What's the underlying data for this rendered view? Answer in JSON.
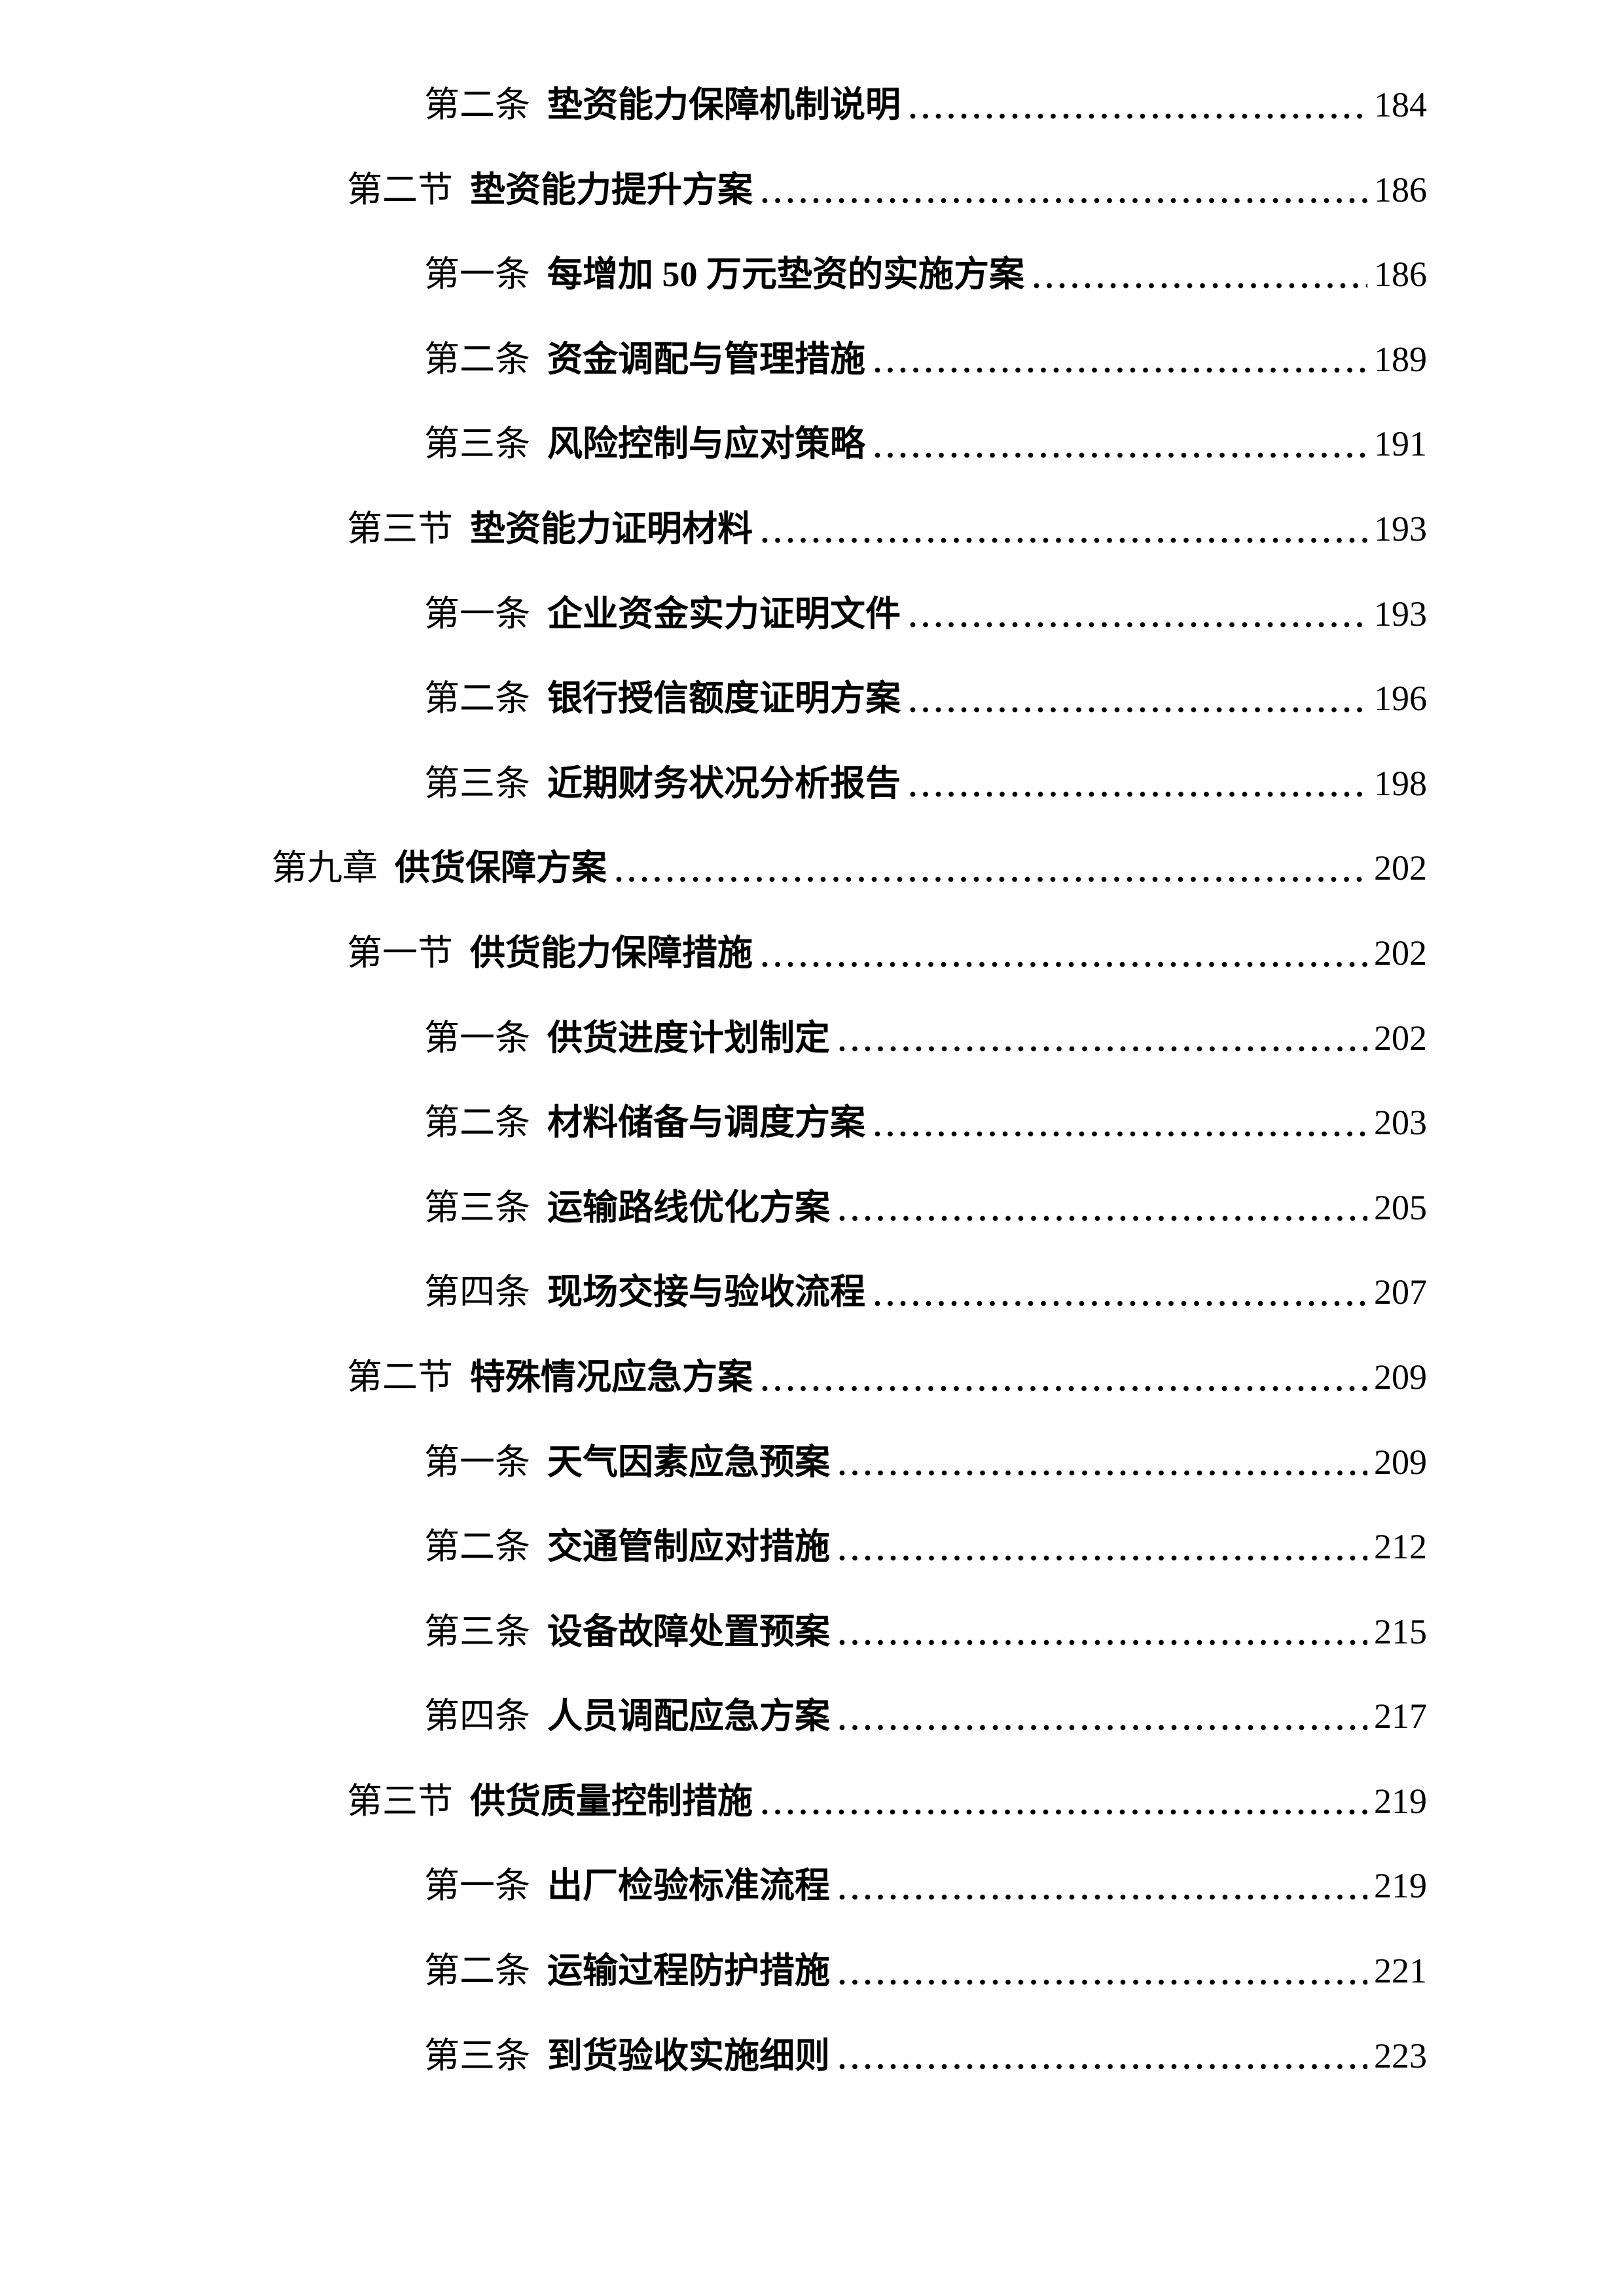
{
  "page": {
    "background_color": "#ffffff",
    "text_color": "#000000"
  },
  "toc": {
    "entries": [
      {
        "level": "article",
        "label": "第二条",
        "title": "垫资能力保障机制说明",
        "page": "184"
      },
      {
        "level": "section",
        "label": "第二节",
        "title": "垫资能力提升方案",
        "page": "186"
      },
      {
        "level": "article",
        "label": "第一条",
        "title": "每增加 50 万元垫资的实施方案",
        "page": "186"
      },
      {
        "level": "article",
        "label": "第二条",
        "title": "资金调配与管理措施",
        "page": "189"
      },
      {
        "level": "article",
        "label": "第三条",
        "title": "风险控制与应对策略",
        "page": "191"
      },
      {
        "level": "section",
        "label": "第三节",
        "title": "垫资能力证明材料",
        "page": "193"
      },
      {
        "level": "article",
        "label": "第一条",
        "title": "企业资金实力证明文件",
        "page": "193"
      },
      {
        "level": "article",
        "label": "第二条",
        "title": "银行授信额度证明方案",
        "page": "196"
      },
      {
        "level": "article",
        "label": "第三条",
        "title": "近期财务状况分析报告",
        "page": "198"
      },
      {
        "level": "chapter",
        "label": "第九章",
        "title": "供货保障方案",
        "page": "202"
      },
      {
        "level": "section",
        "label": "第一节",
        "title": "供货能力保障措施",
        "page": "202"
      },
      {
        "level": "article",
        "label": "第一条",
        "title": "供货进度计划制定",
        "page": "202"
      },
      {
        "level": "article",
        "label": "第二条",
        "title": "材料储备与调度方案",
        "page": "203"
      },
      {
        "level": "article",
        "label": "第三条",
        "title": "运输路线优化方案",
        "page": "205"
      },
      {
        "level": "article",
        "label": "第四条",
        "title": "现场交接与验收流程",
        "page": "207"
      },
      {
        "level": "section",
        "label": "第二节",
        "title": "特殊情况应急方案",
        "page": "209"
      },
      {
        "level": "article",
        "label": "第一条",
        "title": "天气因素应急预案",
        "page": "209"
      },
      {
        "level": "article",
        "label": "第二条",
        "title": "交通管制应对措施",
        "page": "212"
      },
      {
        "level": "article",
        "label": "第三条",
        "title": "设备故障处置预案",
        "page": "215"
      },
      {
        "level": "article",
        "label": "第四条",
        "title": "人员调配应急方案",
        "page": "217"
      },
      {
        "level": "section",
        "label": "第三节",
        "title": "供货质量控制措施",
        "page": "219"
      },
      {
        "level": "article",
        "label": "第一条",
        "title": "出厂检验标准流程",
        "page": "219"
      },
      {
        "level": "article",
        "label": "第二条",
        "title": "运输过程防护措施",
        "page": "221"
      },
      {
        "level": "article",
        "label": "第三条",
        "title": "到货验收实施细则",
        "page": "223"
      }
    ]
  }
}
